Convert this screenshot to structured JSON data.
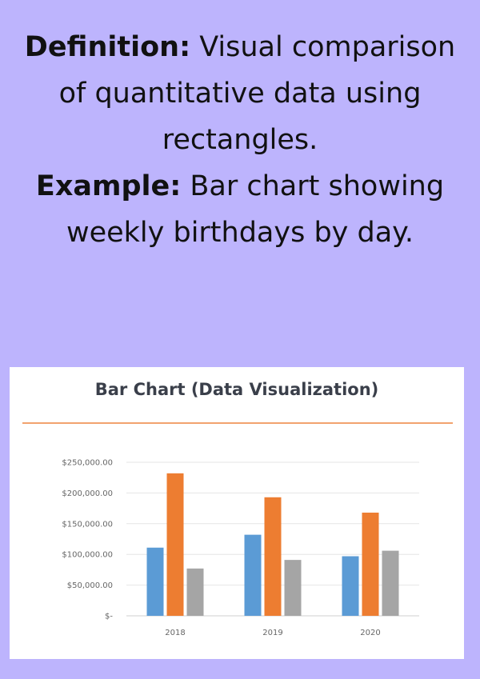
{
  "info": {
    "definition_label": "Definition:",
    "definition_text": " Visual comparison of quantitative data using rectangles.",
    "example_label": "Example:",
    "example_text": " Bar chart showing weekly birthdays by day."
  },
  "colors": {
    "background": "#bdb4fd",
    "series": [
      "#5b9bd5",
      "#ed7d31",
      "#a5a5a5"
    ],
    "title_rule": "#f2a36e"
  },
  "chart_data": {
    "type": "bar",
    "title": "Bar Chart (Data Visualization)",
    "categories": [
      "2018",
      "2019",
      "2020"
    ],
    "series": [
      {
        "values": [
          111000,
          132000,
          97000
        ]
      },
      {
        "values": [
          232000,
          193000,
          168000
        ]
      },
      {
        "values": [
          77000,
          91000,
          106000
        ]
      }
    ],
    "ylim": [
      0,
      250000
    ],
    "y_ticks": [
      0,
      50000,
      100000,
      150000,
      200000,
      250000
    ],
    "y_tick_labels": [
      "$-",
      "$50,000.00",
      "$100,000.00",
      "$150,000.00",
      "$200,000.00",
      "$250,000.00"
    ],
    "grid": true,
    "legend": "none"
  }
}
